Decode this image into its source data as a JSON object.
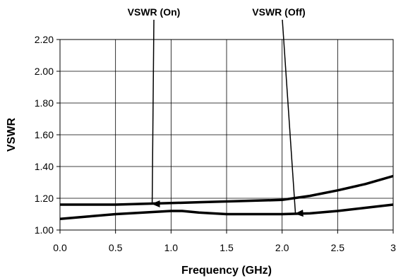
{
  "chart_data": {
    "type": "line",
    "xlabel": "Frequency (GHz)",
    "ylabel": "VSWR",
    "xlim": [
      0,
      3
    ],
    "ylim": [
      1.0,
      2.2
    ],
    "x_ticks": [
      0,
      0.5,
      1,
      1.5,
      2,
      2.5,
      3
    ],
    "x_tick_labels": [
      "0.0",
      "0.5",
      "1.0",
      "1.5",
      "2.0",
      "2.5",
      "3"
    ],
    "y_ticks": [
      1.0,
      1.2,
      1.4,
      1.6,
      1.8,
      2.0,
      2.2
    ],
    "y_tick_labels": [
      "1.00",
      "1.20",
      "1.40",
      "1.60",
      "1.80",
      "2.00",
      "2.20"
    ],
    "grid": true,
    "series": [
      {
        "x": [
          0,
          0.25,
          0.5,
          0.75,
          1.0,
          1.25,
          1.5,
          1.75,
          2.0,
          2.1,
          2.25,
          2.5,
          2.75,
          3.0
        ],
        "values": [
          1.16,
          1.16,
          1.16,
          1.165,
          1.17,
          1.175,
          1.18,
          1.185,
          1.19,
          1.2,
          1.215,
          1.25,
          1.29,
          1.34
        ]
      },
      {
        "x": [
          0,
          0.25,
          0.5,
          0.75,
          1.0,
          1.1,
          1.25,
          1.5,
          1.75,
          2.0,
          2.25,
          2.5,
          2.75,
          3.0
        ],
        "values": [
          1.07,
          1.085,
          1.1,
          1.11,
          1.12,
          1.12,
          1.11,
          1.1,
          1.1,
          1.1,
          1.105,
          1.12,
          1.14,
          1.16
        ]
      }
    ],
    "annotations": [
      {
        "text": "VSWR (On)",
        "target_x": 0.83,
        "target_y": 1.165
      },
      {
        "text": "VSWR (Off)",
        "target_x": 2.12,
        "target_y": 1.103
      }
    ]
  }
}
